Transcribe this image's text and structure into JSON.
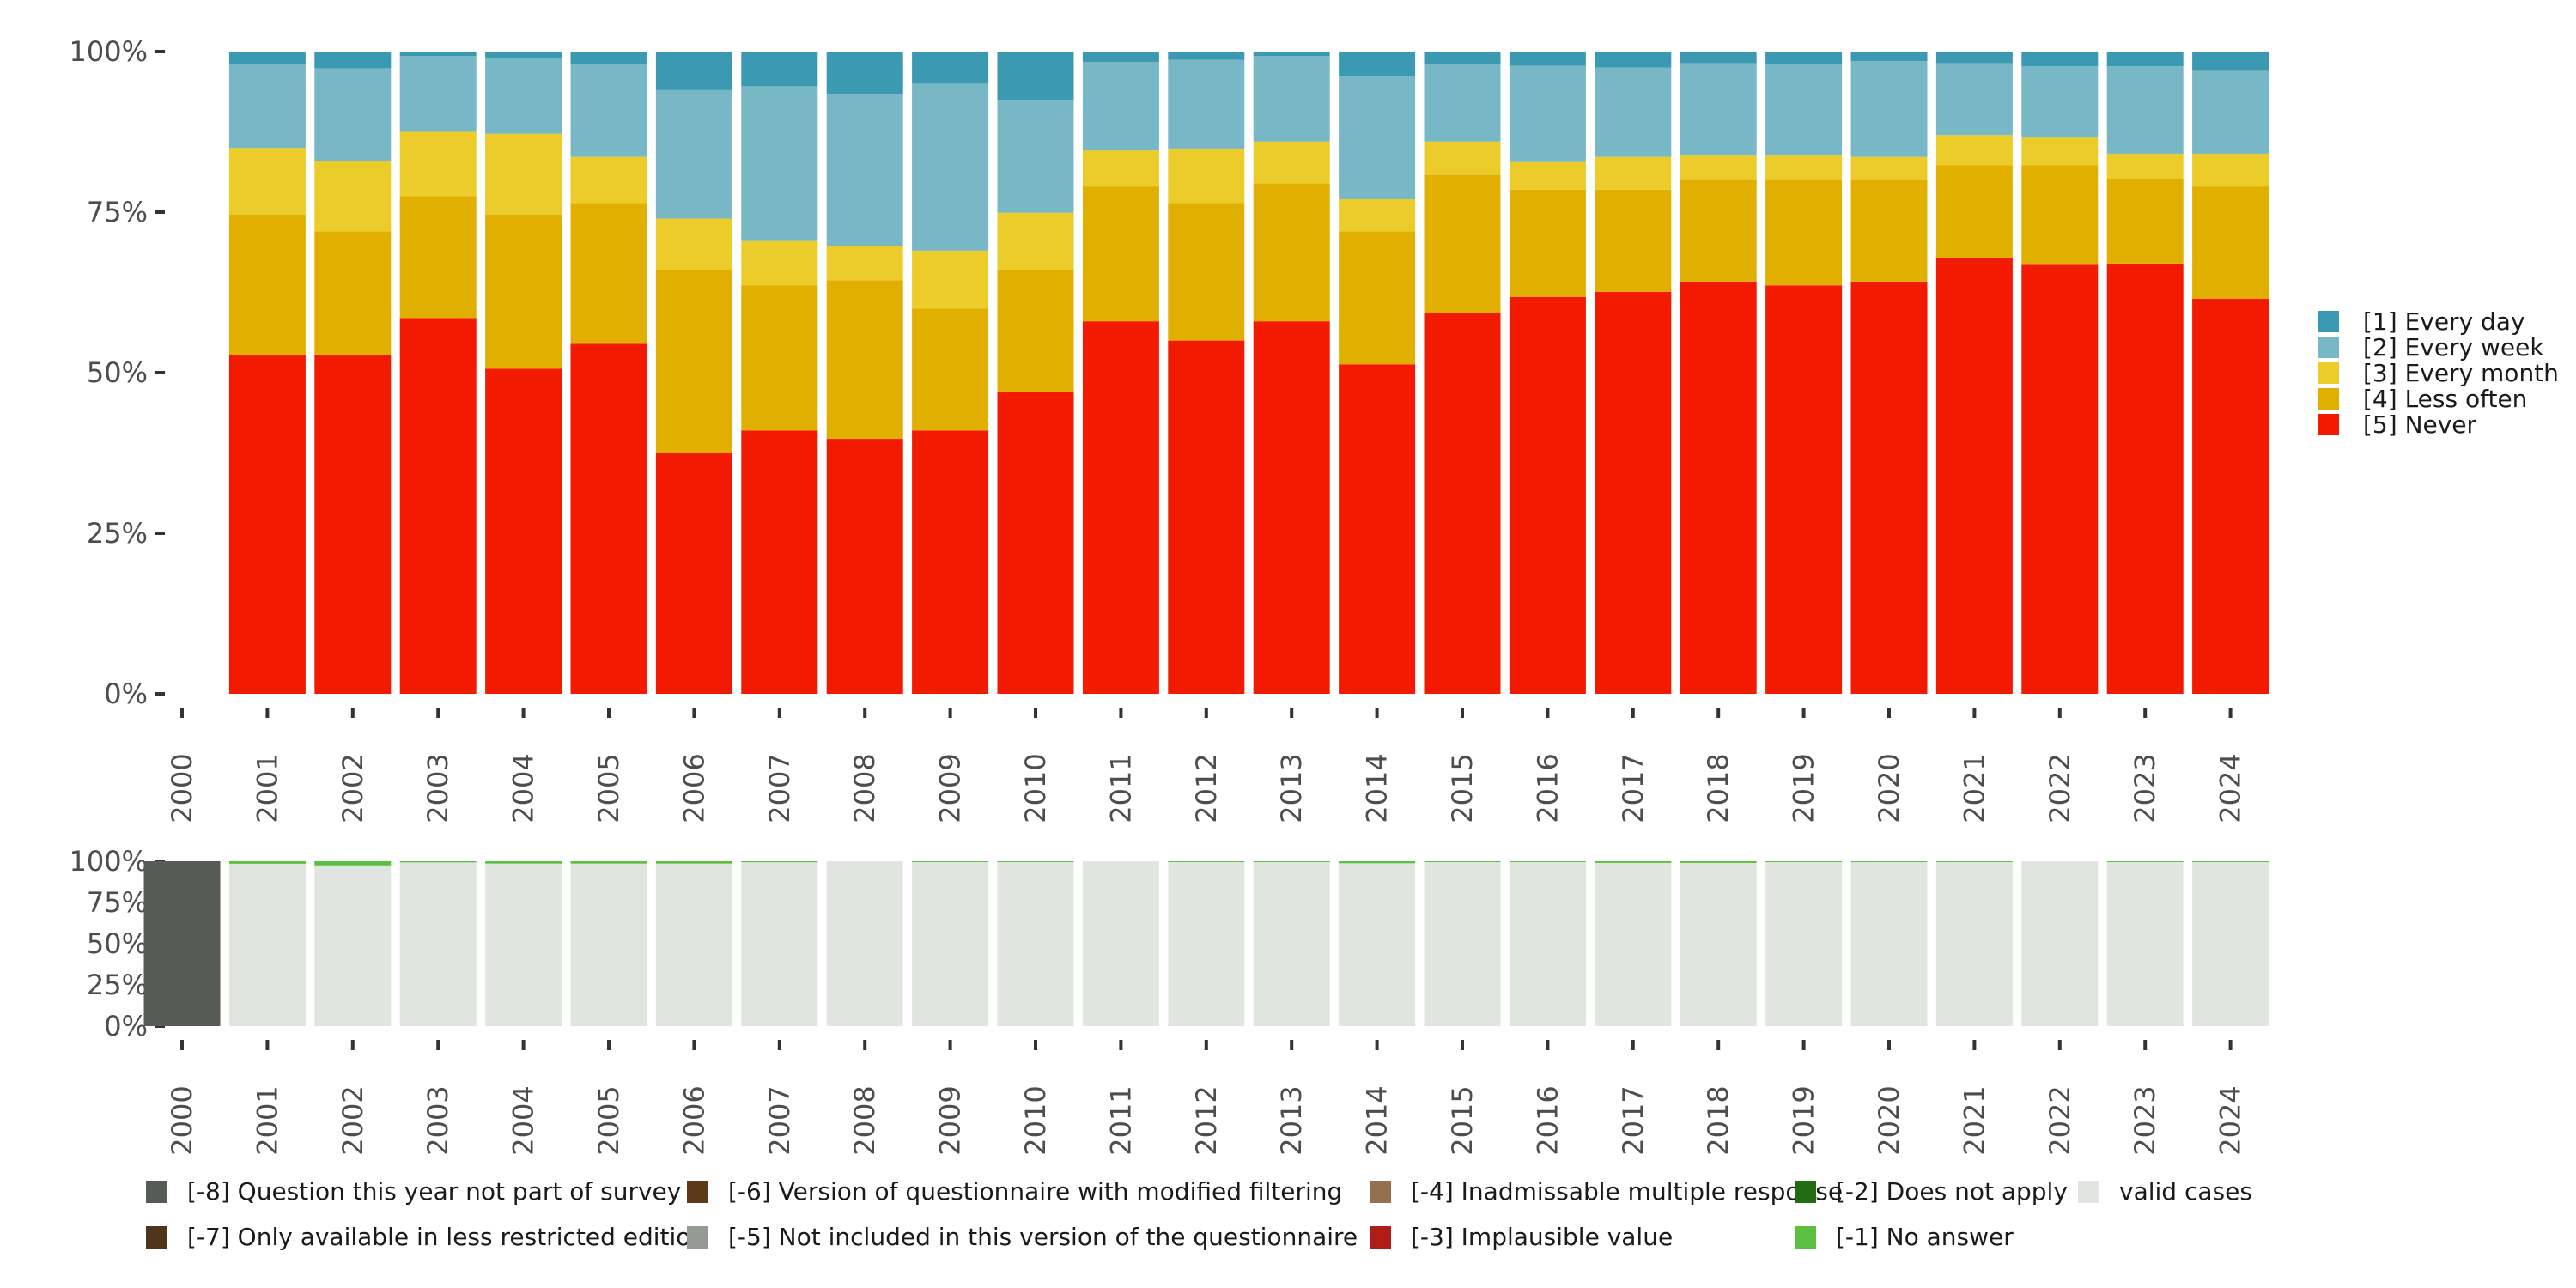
{
  "chart_data": [
    {
      "type": "bar",
      "stacked": true,
      "title": "",
      "xlabel": "",
      "ylabel": "",
      "ylim": [
        0,
        100
      ],
      "yticks": [
        "0%",
        "25%",
        "50%",
        "75%",
        "100%"
      ],
      "categories": [
        "2000",
        "2001",
        "2002",
        "2003",
        "2004",
        "2005",
        "2006",
        "2007",
        "2008",
        "2009",
        "2010",
        "2011",
        "2012",
        "2013",
        "2014",
        "2015",
        "2016",
        "2017",
        "2018",
        "2019",
        "2020",
        "2021",
        "2022",
        "2023",
        "2024"
      ],
      "legend_position": "right",
      "series": [
        {
          "name": "[5] Never",
          "color": "#f21a00",
          "values": [
            null,
            52.8,
            52.8,
            58.5,
            50.6,
            54.5,
            37.5,
            41.0,
            39.7,
            41.0,
            47.0,
            58.0,
            55.0,
            58.0,
            51.3,
            59.3,
            61.8,
            62.6,
            64.2,
            63.6,
            64.2,
            67.9,
            66.8,
            67.0,
            61.5
          ]
        },
        {
          "name": "[4] Less often",
          "color": "#e1af00",
          "values": [
            null,
            21.8,
            19.2,
            19.0,
            24.0,
            21.9,
            28.5,
            22.6,
            24.7,
            19.0,
            19.0,
            21.0,
            21.4,
            21.5,
            20.7,
            21.5,
            16.7,
            15.9,
            15.8,
            16.4,
            15.8,
            14.4,
            15.5,
            13.2,
            17.5
          ]
        },
        {
          "name": "[3] Every month",
          "color": "#ebcc2a",
          "values": [
            null,
            10.4,
            11.0,
            10.0,
            12.6,
            7.2,
            8.0,
            6.9,
            5.3,
            9.0,
            8.9,
            5.6,
            8.5,
            6.5,
            5.0,
            5.2,
            4.3,
            5.1,
            3.8,
            3.8,
            3.6,
            4.7,
            4.3,
            3.9,
            5.1
          ]
        },
        {
          "name": "[2] Every week",
          "color": "#78b7c5",
          "values": [
            null,
            13.0,
            14.4,
            11.8,
            11.8,
            14.4,
            20.0,
            24.1,
            23.6,
            26.0,
            17.6,
            13.8,
            13.8,
            13.3,
            19.2,
            12.0,
            15.0,
            13.9,
            14.4,
            14.2,
            14.9,
            11.2,
            11.1,
            13.6,
            12.9
          ]
        },
        {
          "name": "[1] Every day",
          "color": "#3b9ab2",
          "values": [
            null,
            2.0,
            2.6,
            0.7,
            1.0,
            2.0,
            6.0,
            5.4,
            6.7,
            5.0,
            7.5,
            1.6,
            1.3,
            0.7,
            3.8,
            2.0,
            2.2,
            2.5,
            1.8,
            2.0,
            1.5,
            1.8,
            2.3,
            2.3,
            3.0
          ]
        }
      ]
    },
    {
      "type": "bar",
      "stacked": true,
      "title": "",
      "xlabel": "",
      "ylabel": "",
      "ylim": [
        0,
        100
      ],
      "yticks": [
        "0%",
        "25%",
        "50%",
        "75%",
        "100%"
      ],
      "categories": [
        "2000",
        "2001",
        "2002",
        "2003",
        "2004",
        "2005",
        "2006",
        "2007",
        "2008",
        "2009",
        "2010",
        "2011",
        "2012",
        "2013",
        "2014",
        "2015",
        "2016",
        "2017",
        "2018",
        "2019",
        "2020",
        "2021",
        "2022",
        "2023",
        "2024"
      ],
      "legend_position": "bottom",
      "series": [
        {
          "name": "valid cases",
          "color": "#e0e5e0",
          "values": [
            0,
            98.5,
            97.5,
            99.3,
            98.6,
            98.6,
            98.6,
            99.4,
            100,
            99.5,
            99.5,
            100,
            99.5,
            99.5,
            98.8,
            99.5,
            99.5,
            99.0,
            99.0,
            99.5,
            99.5,
            99.5,
            100,
            99.5,
            99.5
          ]
        },
        {
          "name": "[-1] No answer",
          "color": "#5bbf40",
          "values": [
            0,
            1.5,
            2.5,
            0.7,
            1.4,
            1.4,
            1.4,
            0.6,
            0,
            0.5,
            0.5,
            0,
            0.5,
            0.5,
            1.2,
            0.5,
            0.5,
            1.0,
            1.0,
            0.5,
            0.5,
            0.5,
            0,
            0.5,
            0.5
          ]
        },
        {
          "name": "[-8] Question this year not part of survey",
          "color": "#555c55",
          "values": [
            100,
            0,
            0,
            0,
            0,
            0,
            0,
            0,
            0,
            0,
            0,
            0,
            0,
            0,
            0,
            0,
            0,
            0,
            0,
            0,
            0,
            0,
            0,
            0,
            0
          ]
        }
      ]
    }
  ],
  "bottom_legend": [
    {
      "label": "[-8] Question this year not part of survey",
      "color": "#555c55"
    },
    {
      "label": "[-7] Only available in less restricted edition",
      "color": "#4e341a"
    },
    {
      "label": "[-6] Version of questionnaire with modified filtering",
      "color": "#5b3a1a"
    },
    {
      "label": "[-5] Not included in this version of the questionnaire",
      "color": "#969a94"
    },
    {
      "label": "[-4] Inadmissable multiple response",
      "color": "#957050"
    },
    {
      "label": "[-3] Implausible value",
      "color": "#b01c18"
    },
    {
      "label": "[-2] Does not apply",
      "color": "#216b10"
    },
    {
      "label": "[-1] No answer",
      "color": "#5bbf40"
    },
    {
      "label": "valid cases",
      "color": "#e0e5e0"
    }
  ]
}
